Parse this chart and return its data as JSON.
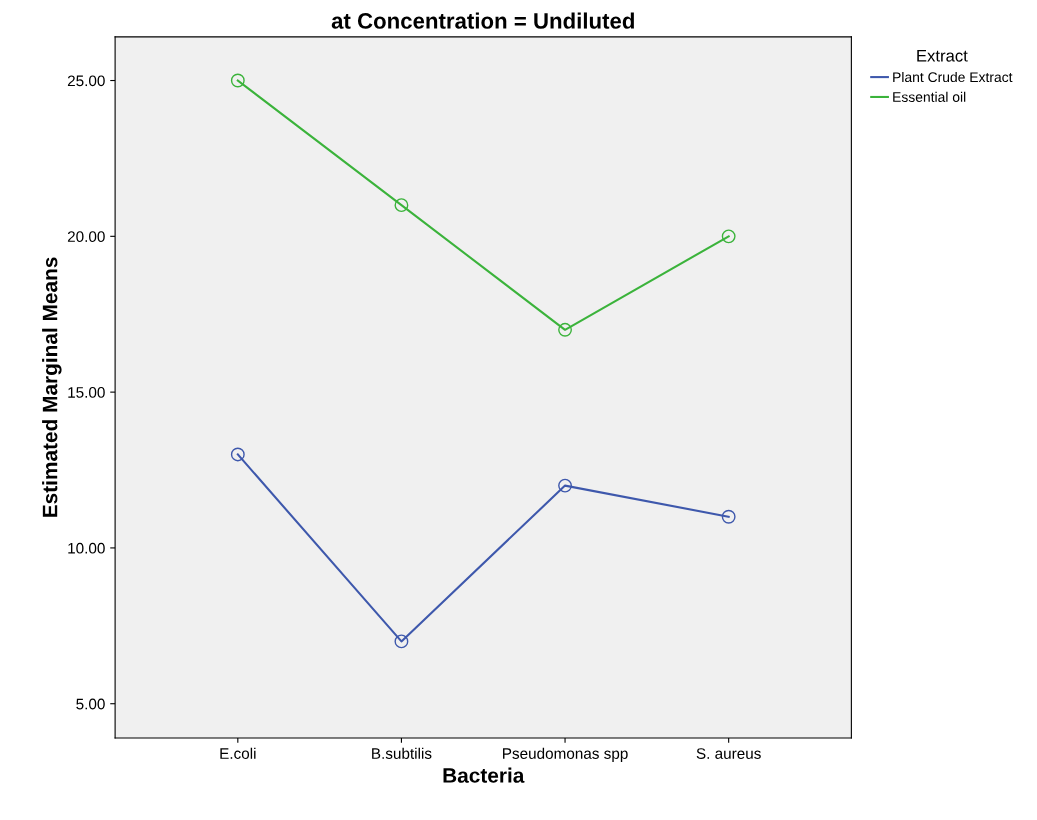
{
  "chart_data": {
    "type": "line",
    "title": "at Concentration = Undiluted",
    "xlabel": "Bacteria",
    "ylabel": "Estimated Marginal Means",
    "legend_title": "Extract",
    "categories": [
      "E.coli",
      "B.subtilis",
      "Pseudomonas spp",
      "S. aureus"
    ],
    "series": [
      {
        "name": "Plant Crude Extract",
        "color": "#3e58ac",
        "values": [
          13,
          7,
          12,
          11
        ]
      },
      {
        "name": "Essential oil",
        "color": "#3bb33b",
        "values": [
          25,
          21,
          17,
          20
        ]
      }
    ],
    "ylim": [
      3.9,
      26.4
    ],
    "yticks": [
      {
        "value": 5,
        "label": "5.00"
      },
      {
        "value": 10,
        "label": "10.00"
      },
      {
        "value": 15,
        "label": "15.00"
      },
      {
        "value": 20,
        "label": "20.00"
      },
      {
        "value": 25,
        "label": "25.00"
      }
    ],
    "grid": false,
    "legend": "top right",
    "marker": "circle",
    "line_style": "solid"
  }
}
